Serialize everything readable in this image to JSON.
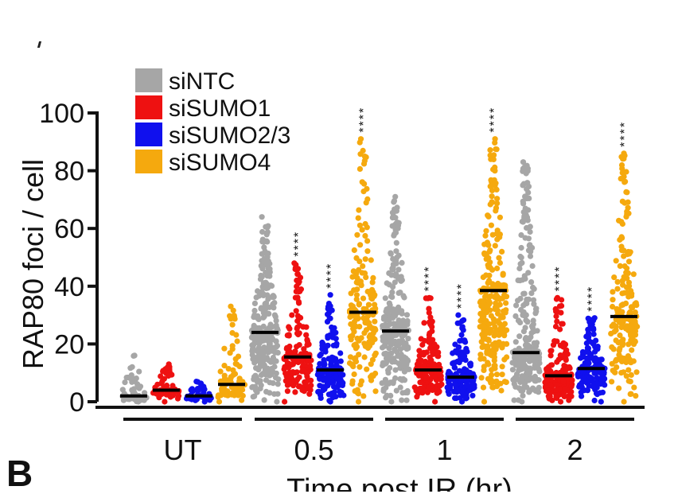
{
  "chart_data": {
    "type": "scatter",
    "ylabel": "RAP80 foci / cell",
    "xlabel": "Time post IR (hr)",
    "ylim": [
      0,
      100
    ],
    "yticks": [
      0,
      20,
      40,
      60,
      80,
      100
    ],
    "groups": [
      "UT",
      "0.5",
      "1",
      "2"
    ],
    "legend_position": "top-left",
    "series": [
      {
        "name": "siNTC",
        "color": "#a6a6a6",
        "medians": [
          2,
          24,
          24.5,
          17
        ],
        "max": [
          16,
          64,
          71,
          83
        ],
        "n": [
          70,
          260,
          260,
          260
        ],
        "significance": [
          "",
          "",
          "",
          ""
        ]
      },
      {
        "name": "siSUMO1",
        "color": "#ee1111",
        "medians": [
          4,
          15.5,
          11,
          9
        ],
        "max": [
          13,
          48,
          36,
          36
        ],
        "n": [
          60,
          160,
          160,
          150
        ],
        "significance": [
          "",
          "****",
          "****",
          "****"
        ]
      },
      {
        "name": "siSUMO2/3",
        "color": "#1010ee",
        "medians": [
          2,
          11,
          8.5,
          11.5
        ],
        "max": [
          7,
          37,
          30,
          29
        ],
        "n": [
          45,
          150,
          140,
          160
        ],
        "significance": [
          "",
          "****",
          "****",
          "****"
        ]
      },
      {
        "name": "siSUMO4",
        "color": "#f5a90e",
        "medians": [
          6,
          31,
          38.5,
          29.5
        ],
        "max": [
          33,
          91,
          91,
          86
        ],
        "n": [
          80,
          190,
          260,
          190
        ],
        "significance": [
          "",
          "****",
          "****",
          "****"
        ]
      }
    ]
  }
}
